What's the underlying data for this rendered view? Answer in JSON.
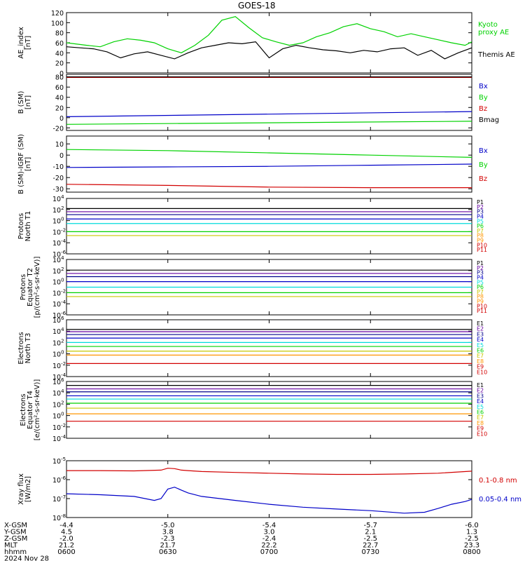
{
  "title": "GOES-18",
  "colors": {
    "black": "#000000",
    "blue": "#0000c8",
    "green": "#00d200",
    "red": "#d20000",
    "yellow": "#c8c800",
    "cyan": "#00dcdc",
    "orange": "#ff9600",
    "purple": "#6400a0",
    "navy": "#00008c"
  },
  "time": {
    "start": "0600",
    "end": "0800",
    "ticks": [
      "0600",
      "0630",
      "0700",
      "0730",
      "0800"
    ]
  },
  "footer": {
    "rows": [
      {
        "label": "X-GSM",
        "values": [
          "-4.4",
          "-5.0",
          "-5.4",
          "-5.7",
          "-6.0"
        ]
      },
      {
        "label": "Y-GSM",
        "values": [
          "4.5",
          "3.8",
          "3.0",
          "2.1",
          "1.3"
        ]
      },
      {
        "label": "Z-GSM",
        "values": [
          "-2.0",
          "-2.3",
          "-2.4",
          "-2.5",
          "-2.5"
        ]
      },
      {
        "label": "MLT",
        "values": [
          "21.2",
          "21.7",
          "22.2",
          "22.7",
          "23.3"
        ]
      },
      {
        "label": "hhmm",
        "values": [
          "0600",
          "0630",
          "0700",
          "0730",
          "0800"
        ]
      }
    ],
    "date": "2024 Nov 28"
  },
  "chart_data": [
    {
      "type": "line",
      "ylabel": [
        "AE_index",
        "[nT]"
      ],
      "ylim": [
        0,
        120
      ],
      "yticks": [
        "0",
        "20",
        "40",
        "60",
        "80",
        "100",
        "120"
      ],
      "series": [
        {
          "name": "Kyoto proxy AE",
          "color_key": "green",
          "x": [
            0,
            6,
            10,
            14,
            18,
            22,
            26,
            30,
            34,
            38,
            42,
            46,
            50,
            54,
            58,
            62,
            66,
            70,
            74,
            78,
            82,
            86,
            90,
            94,
            98,
            102,
            106,
            110,
            114,
            118,
            120
          ],
          "values": [
            60,
            55,
            52,
            62,
            68,
            65,
            60,
            48,
            40,
            55,
            75,
            105,
            112,
            90,
            70,
            62,
            55,
            60,
            72,
            80,
            92,
            98,
            88,
            82,
            72,
            78,
            72,
            66,
            60,
            55,
            62
          ]
        },
        {
          "name": "Themis AE",
          "color_key": "black",
          "x": [
            0,
            4,
            8,
            12,
            16,
            20,
            24,
            28,
            32,
            36,
            40,
            44,
            48,
            52,
            56,
            60,
            64,
            68,
            72,
            76,
            80,
            84,
            88,
            92,
            96,
            100,
            104,
            108,
            112,
            116,
            120
          ],
          "values": [
            52,
            50,
            48,
            42,
            30,
            38,
            42,
            35,
            28,
            40,
            50,
            55,
            60,
            58,
            62,
            30,
            48,
            55,
            50,
            46,
            44,
            40,
            45,
            42,
            48,
            50,
            35,
            45,
            28,
            40,
            50
          ]
        }
      ],
      "legend": [
        {
          "text": "Kyoto",
          "color_key": "green"
        },
        {
          "text": "proxy AE",
          "color_key": "green"
        },
        {
          "text": "Themis AE",
          "color_key": "black"
        }
      ]
    },
    {
      "type": "line",
      "ylabel": [
        "B (SM)",
        "[nT]"
      ],
      "ylim": [
        -25,
        85
      ],
      "yticks": [
        "-20",
        "0",
        "20",
        "40",
        "60",
        "80"
      ],
      "series": [
        {
          "name": "Bx",
          "color_key": "blue",
          "x": [
            0,
            120
          ],
          "values": [
            2,
            12
          ]
        },
        {
          "name": "By",
          "color_key": "green",
          "x": [
            0,
            120
          ],
          "values": [
            -13,
            -7
          ]
        },
        {
          "name": "Bz",
          "color_key": "red",
          "x": [
            0,
            120
          ],
          "values": [
            79,
            79
          ]
        },
        {
          "name": "Bmag",
          "color_key": "black",
          "x": [
            0,
            120
          ],
          "values": [
            80,
            80
          ]
        }
      ],
      "legend": [
        {
          "text": "Bx",
          "color_key": "blue"
        },
        {
          "text": "By",
          "color_key": "green"
        },
        {
          "text": "Bz",
          "color_key": "red"
        },
        {
          "text": "Bmag",
          "color_key": "black"
        }
      ]
    },
    {
      "type": "line",
      "ylabel": [
        "B (SM)-IGRF (SM)",
        "[nT]"
      ],
      "ylim": [
        -33,
        17
      ],
      "yticks": [
        "-30",
        "-20",
        "-10",
        "0",
        "10"
      ],
      "series": [
        {
          "name": "Bx",
          "color_key": "blue",
          "x": [
            0,
            30,
            60,
            90,
            120
          ],
          "values": [
            -11,
            -10.5,
            -10,
            -9,
            -8
          ]
        },
        {
          "name": "By",
          "color_key": "green",
          "x": [
            0,
            30,
            60,
            90,
            120
          ],
          "values": [
            5,
            4,
            2,
            0,
            -2
          ]
        },
        {
          "name": "Bz",
          "color_key": "red",
          "x": [
            0,
            30,
            60,
            90,
            120
          ],
          "values": [
            -26,
            -27,
            -28.5,
            -29,
            -29
          ]
        }
      ],
      "legend": [
        {
          "text": "Bx",
          "color_key": "blue"
        },
        {
          "text": "By",
          "color_key": "green"
        },
        {
          "text": "Bz",
          "color_key": "red"
        }
      ]
    },
    {
      "type": "line",
      "scale": "log",
      "ylabel": [
        "Protons",
        "North T1"
      ],
      "ylim_exp": [
        -6,
        4
      ],
      "yticks_exp": [
        -6,
        -4,
        -2,
        0,
        2,
        4
      ],
      "levels": [
        {
          "name": "P1",
          "color_key": "black",
          "value": 150.0
        },
        {
          "name": "P2",
          "color_key": "purple",
          "value": 40.0
        },
        {
          "name": "P3",
          "color_key": "navy",
          "value": 12.0
        },
        {
          "name": "P4",
          "color_key": "blue",
          "value": 2.0
        },
        {
          "name": "P5",
          "color_key": "cyan",
          "value": 0.3
        },
        {
          "name": "P6",
          "color_key": "green",
          "value": 0.01
        },
        {
          "name": "P7",
          "color_key": "yellow",
          "value": 0.002
        }
      ],
      "legend": [
        "P1",
        "P2",
        "P3",
        "P4",
        "P5",
        "P6",
        "P7",
        "P8",
        "P9",
        "P10",
        "P11"
      ],
      "legend_color_keys": [
        "black",
        "purple",
        "navy",
        "blue",
        "cyan",
        "green",
        "yellow",
        "orange",
        "orange",
        "red",
        "red"
      ]
    },
    {
      "type": "line",
      "scale": "log",
      "ylabel": [
        "Protons",
        "Equator T2",
        "[p/(cm²-s-sr-keV)]"
      ],
      "ylim_exp": [
        -6,
        4
      ],
      "yticks_exp": [
        -6,
        -4,
        -2,
        0,
        2,
        4
      ],
      "levels": [
        {
          "name": "P1",
          "color_key": "black",
          "value": 120.0
        },
        {
          "name": "P2",
          "color_key": "purple",
          "value": 30.0
        },
        {
          "name": "P3",
          "color_key": "navy",
          "value": 8.0
        },
        {
          "name": "P4",
          "color_key": "blue",
          "value": 1.0
        },
        {
          "name": "P5",
          "color_key": "cyan",
          "value": 0.1
        },
        {
          "name": "P6",
          "color_key": "green",
          "value": 0.01
        },
        {
          "name": "P7",
          "color_key": "yellow",
          "value": 0.002
        }
      ],
      "legend": [
        "P1",
        "P2",
        "P3",
        "P4",
        "P5",
        "P6",
        "P7",
        "P8",
        "P9",
        "P10",
        "P11"
      ],
      "legend_color_keys": [
        "black",
        "purple",
        "navy",
        "blue",
        "cyan",
        "green",
        "yellow",
        "orange",
        "orange",
        "red",
        "red"
      ]
    },
    {
      "type": "line",
      "scale": "log",
      "ylabel": [
        "Electrons",
        "North T3"
      ],
      "ylim_exp": [
        -4,
        6
      ],
      "yticks_exp": [
        -4,
        -2,
        0,
        2,
        4,
        6
      ],
      "levels": [
        {
          "name": "E1",
          "color_key": "black",
          "value": 20000.0
        },
        {
          "name": "E2",
          "color_key": "purple",
          "value": 8000.0
        },
        {
          "name": "E3",
          "color_key": "navy",
          "value": 2500.0
        },
        {
          "name": "E4",
          "color_key": "blue",
          "value": 600.0
        },
        {
          "name": "E5",
          "color_key": "cyan",
          "value": 100.0
        },
        {
          "name": "E6",
          "color_key": "green",
          "value": 20.0
        },
        {
          "name": "E7",
          "color_key": "yellow",
          "value": 3.0
        },
        {
          "name": "E8",
          "color_key": "orange",
          "value": 0.6
        },
        {
          "name": "E9",
          "color_key": "red",
          "value": 0.02
        }
      ],
      "legend": [
        "E1",
        "E2",
        "E3",
        "E4",
        "E5",
        "E6",
        "E7",
        "E8",
        "E9",
        "E10"
      ],
      "legend_color_keys": [
        "black",
        "purple",
        "navy",
        "blue",
        "cyan",
        "green",
        "yellow",
        "orange",
        "red",
        "red"
      ]
    },
    {
      "type": "line",
      "scale": "log",
      "ylabel": [
        "Electrons",
        "Equator T4",
        "[e/(cm²-s-sr-keV)]"
      ],
      "ylim_exp": [
        -4,
        6
      ],
      "yticks_exp": [
        -4,
        -2,
        0,
        2,
        4,
        6
      ],
      "levels": [
        {
          "name": "E1",
          "color_key": "black",
          "value": 200000.0
        },
        {
          "name": "E2",
          "color_key": "purple",
          "value": 50000.0
        },
        {
          "name": "E3",
          "color_key": "navy",
          "value": 15000.0
        },
        {
          "name": "E4",
          "color_key": "blue",
          "value": 3000.0
        },
        {
          "name": "E5",
          "color_key": "cyan",
          "value": 800.0
        },
        {
          "name": "E6",
          "color_key": "green",
          "value": 150.0
        },
        {
          "name": "E7",
          "color_key": "yellow",
          "value": 20.0
        },
        {
          "name": "E8",
          "color_key": "orange",
          "value": 2.0
        },
        {
          "name": "E9",
          "color_key": "red",
          "value": 0.1
        }
      ],
      "legend": [
        "E1",
        "E2",
        "E3",
        "E4",
        "E5",
        "E6",
        "E7",
        "E8",
        "E9",
        "E10"
      ],
      "legend_color_keys": [
        "black",
        "purple",
        "navy",
        "blue",
        "cyan",
        "green",
        "yellow",
        "orange",
        "red",
        "red"
      ]
    },
    {
      "type": "line",
      "scale": "log",
      "ylabel": [
        "Xray flux",
        "[W/m2]"
      ],
      "ylim_exp": [
        -8,
        -5
      ],
      "yticks_exp": [
        -8,
        -7,
        -6,
        -5
      ],
      "series": [
        {
          "name": "0.1-0.8 nm",
          "color_key": "red",
          "x": [
            0,
            10,
            20,
            28,
            30,
            32,
            34,
            36,
            40,
            50,
            60,
            70,
            80,
            90,
            100,
            110,
            120
          ],
          "values": [
            3e-06,
            3e-06,
            2.9e-06,
            3.2e-06,
            4e-06,
            3.8e-06,
            3.2e-06,
            3e-06,
            2.7e-06,
            2.4e-06,
            2.2e-06,
            2e-06,
            1.9e-06,
            1.9e-06,
            2e-06,
            2.2e-06,
            2.8e-06
          ]
        },
        {
          "name": "0.05-0.4 nm",
          "color_key": "blue",
          "x": [
            0,
            10,
            20,
            26,
            28,
            30,
            32,
            34,
            36,
            40,
            50,
            60,
            70,
            80,
            90,
            100,
            106,
            110,
            114,
            118,
            120
          ],
          "values": [
            1.8e-07,
            1.6e-07,
            1.3e-07,
            8e-08,
            1e-07,
            3.2e-07,
            4e-07,
            2.8e-07,
            2e-07,
            1.3e-07,
            8e-08,
            5e-08,
            3.5e-08,
            2.8e-08,
            2.3e-08,
            1.7e-08,
            1.9e-08,
            3e-08,
            5e-08,
            7e-08,
            9e-08
          ]
        }
      ],
      "legend": [
        {
          "text": "0.1-0.8 nm",
          "color_key": "red"
        },
        {
          "text": "0.05-0.4 nm",
          "color_key": "blue"
        }
      ]
    }
  ]
}
